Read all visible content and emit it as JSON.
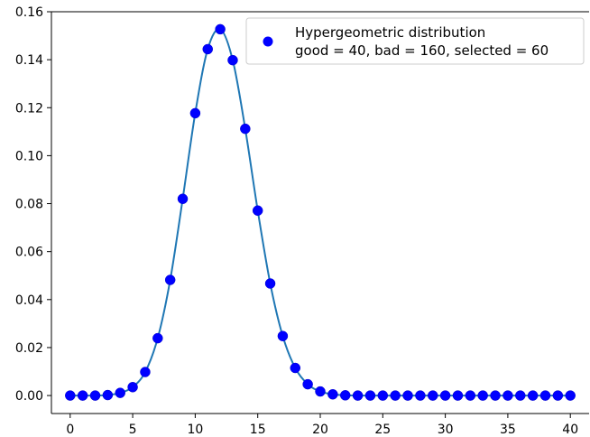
{
  "chart_data": {
    "type": "scatter",
    "title": "",
    "xlabel": "",
    "ylabel": "",
    "xlim": [
      -1.5,
      41.5
    ],
    "ylim": [
      -0.0075,
      0.16
    ],
    "x_ticks": [
      0,
      5,
      10,
      15,
      20,
      25,
      30,
      35,
      40
    ],
    "x_tick_labels": [
      "0",
      "5",
      "10",
      "15",
      "20",
      "25",
      "30",
      "35",
      "40"
    ],
    "y_ticks": [
      0.0,
      0.02,
      0.04,
      0.06,
      0.08,
      0.1,
      0.12,
      0.14,
      0.16
    ],
    "y_tick_labels": [
      "0.00",
      "0.02",
      "0.04",
      "0.06",
      "0.08",
      "0.10",
      "0.12",
      "0.14",
      "0.16"
    ],
    "grid": false,
    "legend_position": "top-right",
    "legend_lines": [
      "Hypergeometric  distribution",
      "good = 40, bad = 160, selected = 60"
    ],
    "colors": {
      "points": "#0000ff",
      "point_edge": "#0000cc",
      "curve": "#1f77b4"
    },
    "series": [
      {
        "name": "Hypergeometric  distribution",
        "kind": "points",
        "x": [
          0,
          1,
          2,
          3,
          4,
          5,
          6,
          7,
          8,
          9,
          10,
          11,
          12,
          13,
          14,
          15,
          16,
          17,
          18,
          19,
          20,
          21,
          22,
          23,
          24,
          25,
          26,
          27,
          28,
          29,
          30,
          31,
          32,
          33,
          34,
          35,
          36,
          37,
          38,
          39,
          40
        ],
        "y": [
          0.0,
          0.0,
          0.0,
          0.0002,
          0.0011,
          0.0035,
          0.0098,
          0.0239,
          0.0482,
          0.082,
          0.1177,
          0.1444,
          0.1527,
          0.1398,
          0.1112,
          0.0771,
          0.0467,
          0.0248,
          0.0115,
          0.0047,
          0.0017,
          0.0005,
          0.0001,
          0.0,
          0.0,
          0.0,
          0.0,
          0.0,
          0.0,
          0.0,
          0.0,
          0.0,
          0.0,
          0.0,
          0.0,
          0.0,
          0.0,
          0.0,
          0.0,
          0.0,
          0.0
        ]
      },
      {
        "kind": "curve",
        "x": [
          0,
          1,
          2,
          3,
          4,
          5,
          6,
          7,
          8,
          9,
          10,
          11,
          12,
          13,
          14,
          15,
          16,
          17,
          18,
          19,
          20,
          21,
          22,
          23,
          24,
          25,
          26,
          27,
          28,
          29,
          30,
          31,
          32,
          33,
          34,
          35,
          36,
          37,
          38,
          39,
          40
        ],
        "y": [
          0.0,
          0.0,
          0.0,
          0.0002,
          0.0011,
          0.0035,
          0.0098,
          0.0239,
          0.0482,
          0.082,
          0.1177,
          0.1444,
          0.1527,
          0.1398,
          0.1112,
          0.0771,
          0.0467,
          0.0248,
          0.0115,
          0.0047,
          0.0017,
          0.0005,
          0.0001,
          0.0,
          0.0,
          0.0,
          0.0,
          0.0,
          0.0,
          0.0,
          0.0,
          0.0,
          0.0,
          0.0,
          0.0,
          0.0,
          0.0,
          0.0,
          0.0,
          0.0,
          0.0
        ]
      }
    ]
  }
}
